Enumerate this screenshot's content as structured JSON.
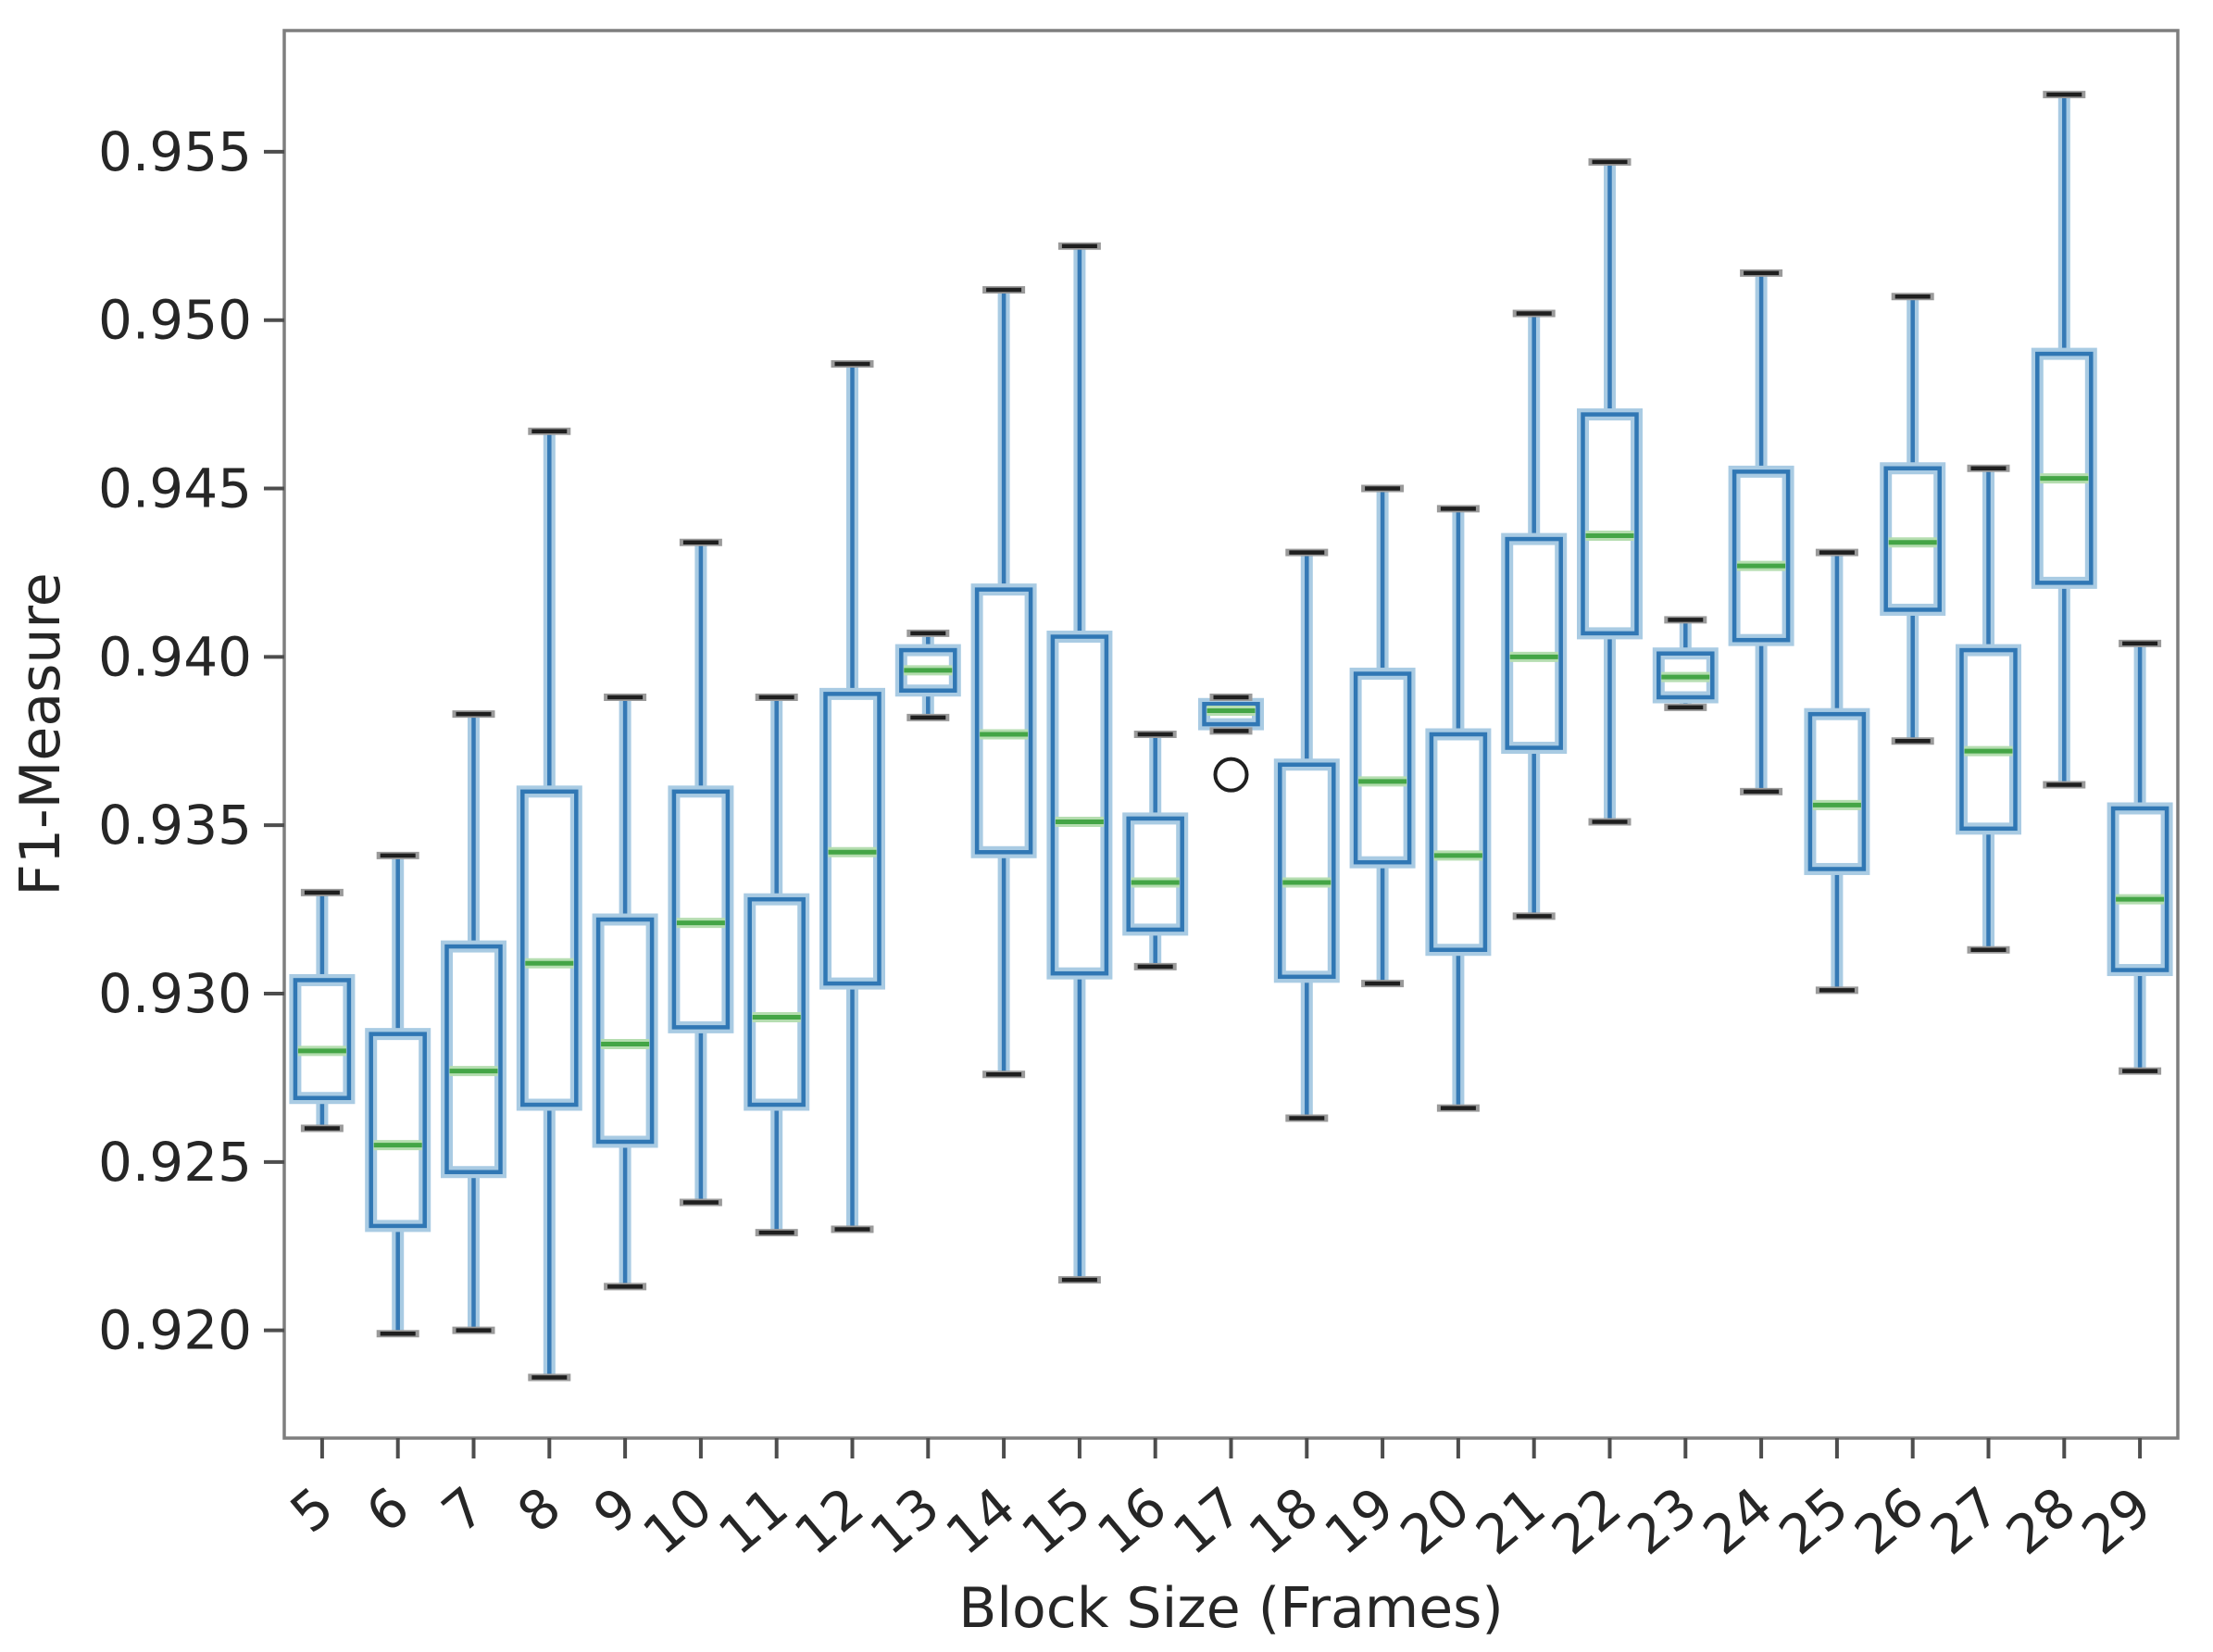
{
  "figure": {
    "background": "#ffffff",
    "xlabel": "Block Size (Frames)",
    "ylabel": "F1-Measure"
  },
  "chart_data": {
    "type": "box",
    "title": "",
    "xlabel": "Block Size (Frames)",
    "ylabel": "F1-Measure",
    "categories": [
      "5",
      "6",
      "7",
      "8",
      "9",
      "10",
      "11",
      "12",
      "13",
      "14",
      "15",
      "16",
      "17",
      "18",
      "19",
      "20",
      "21",
      "22",
      "23",
      "24",
      "25",
      "26",
      "27",
      "28",
      "29"
    ],
    "boxes": [
      {
        "category": "5",
        "whisker_low": 0.926,
        "q1": 0.9269,
        "median": 0.9283,
        "q3": 0.9304,
        "whisker_high": 0.933,
        "outliers": []
      },
      {
        "category": "6",
        "whisker_low": 0.9199,
        "q1": 0.9231,
        "median": 0.9255,
        "q3": 0.9288,
        "whisker_high": 0.9341,
        "outliers": []
      },
      {
        "category": "7",
        "whisker_low": 0.92,
        "q1": 0.9247,
        "median": 0.9277,
        "q3": 0.9314,
        "whisker_high": 0.9383,
        "outliers": []
      },
      {
        "category": "8",
        "whisker_low": 0.9186,
        "q1": 0.9267,
        "median": 0.9309,
        "q3": 0.936,
        "whisker_high": 0.9467,
        "outliers": []
      },
      {
        "category": "9",
        "whisker_low": 0.9213,
        "q1": 0.9256,
        "median": 0.9285,
        "q3": 0.9322,
        "whisker_high": 0.9388,
        "outliers": []
      },
      {
        "category": "10",
        "whisker_low": 0.9238,
        "q1": 0.929,
        "median": 0.9321,
        "q3": 0.936,
        "whisker_high": 0.9434,
        "outliers": []
      },
      {
        "category": "11",
        "whisker_low": 0.9229,
        "q1": 0.9267,
        "median": 0.9293,
        "q3": 0.9328,
        "whisker_high": 0.9388,
        "outliers": []
      },
      {
        "category": "12",
        "whisker_low": 0.923,
        "q1": 0.9303,
        "median": 0.9342,
        "q3": 0.9389,
        "whisker_high": 0.9487,
        "outliers": []
      },
      {
        "category": "13",
        "whisker_low": 0.9382,
        "q1": 0.939,
        "median": 0.9396,
        "q3": 0.9402,
        "whisker_high": 0.9407,
        "outliers": []
      },
      {
        "category": "14",
        "whisker_low": 0.9276,
        "q1": 0.9342,
        "median": 0.9377,
        "q3": 0.942,
        "whisker_high": 0.9509,
        "outliers": []
      },
      {
        "category": "15",
        "whisker_low": 0.9215,
        "q1": 0.9306,
        "median": 0.9351,
        "q3": 0.9406,
        "whisker_high": 0.9522,
        "outliers": []
      },
      {
        "category": "16",
        "whisker_low": 0.9308,
        "q1": 0.9319,
        "median": 0.9333,
        "q3": 0.9352,
        "whisker_high": 0.9377,
        "outliers": []
      },
      {
        "category": "17",
        "whisker_low": 0.9378,
        "q1": 0.938,
        "median": 0.9384,
        "q3": 0.9386,
        "whisker_high": 0.9388,
        "outliers": [
          0.9365
        ]
      },
      {
        "category": "18",
        "whisker_low": 0.9263,
        "q1": 0.9305,
        "median": 0.9333,
        "q3": 0.9368,
        "whisker_high": 0.9431,
        "outliers": []
      },
      {
        "category": "19",
        "whisker_low": 0.9303,
        "q1": 0.9339,
        "median": 0.9363,
        "q3": 0.9395,
        "whisker_high": 0.945,
        "outliers": []
      },
      {
        "category": "20",
        "whisker_low": 0.9266,
        "q1": 0.9313,
        "median": 0.9341,
        "q3": 0.9377,
        "whisker_high": 0.9444,
        "outliers": []
      },
      {
        "category": "21",
        "whisker_low": 0.9323,
        "q1": 0.9373,
        "median": 0.94,
        "q3": 0.9435,
        "whisker_high": 0.9502,
        "outliers": []
      },
      {
        "category": "22",
        "whisker_low": 0.9351,
        "q1": 0.9407,
        "median": 0.9436,
        "q3": 0.9472,
        "whisker_high": 0.9547,
        "outliers": []
      },
      {
        "category": "23",
        "whisker_low": 0.9385,
        "q1": 0.9388,
        "median": 0.9394,
        "q3": 0.9401,
        "whisker_high": 0.9411,
        "outliers": []
      },
      {
        "category": "24",
        "whisker_low": 0.936,
        "q1": 0.9405,
        "median": 0.9427,
        "q3": 0.9455,
        "whisker_high": 0.9514,
        "outliers": []
      },
      {
        "category": "25",
        "whisker_low": 0.9301,
        "q1": 0.9337,
        "median": 0.9356,
        "q3": 0.9383,
        "whisker_high": 0.9431,
        "outliers": []
      },
      {
        "category": "26",
        "whisker_low": 0.9375,
        "q1": 0.9414,
        "median": 0.9434,
        "q3": 0.9456,
        "whisker_high": 0.9507,
        "outliers": []
      },
      {
        "category": "27",
        "whisker_low": 0.9313,
        "q1": 0.9349,
        "median": 0.9372,
        "q3": 0.9402,
        "whisker_high": 0.9456,
        "outliers": []
      },
      {
        "category": "28",
        "whisker_low": 0.9362,
        "q1": 0.9422,
        "median": 0.9453,
        "q3": 0.949,
        "whisker_high": 0.9567,
        "outliers": []
      },
      {
        "category": "29",
        "whisker_low": 0.9277,
        "q1": 0.9307,
        "median": 0.9328,
        "q3": 0.9355,
        "whisker_high": 0.9404,
        "outliers": []
      }
    ],
    "yticks": [
      0.92,
      0.925,
      0.93,
      0.935,
      0.94,
      0.945,
      0.95,
      0.955
    ],
    "ytick_labels": [
      "0.920",
      "0.925",
      "0.930",
      "0.935",
      "0.940",
      "0.945",
      "0.950",
      "0.955"
    ],
    "ylim": [
      0.9168,
      0.9586
    ],
    "grid": false,
    "legend": null,
    "xtick_rotation_deg": -40,
    "colors": {
      "box_edge": "#3077b4",
      "box_halo": "#a9cbe3",
      "whisker": "#3579b5",
      "whisker_halo": "#a9cbe3",
      "median": "#44a546",
      "median_halo": "#b5ddb0",
      "cap": "#1f1f1f",
      "cap_halo": "#9a9a9a",
      "outlier_edge": "#1f1f1f",
      "frame": "#7e7e7e",
      "tick": "#4d4d4d",
      "text": "#262626",
      "background": "#ffffff"
    }
  }
}
